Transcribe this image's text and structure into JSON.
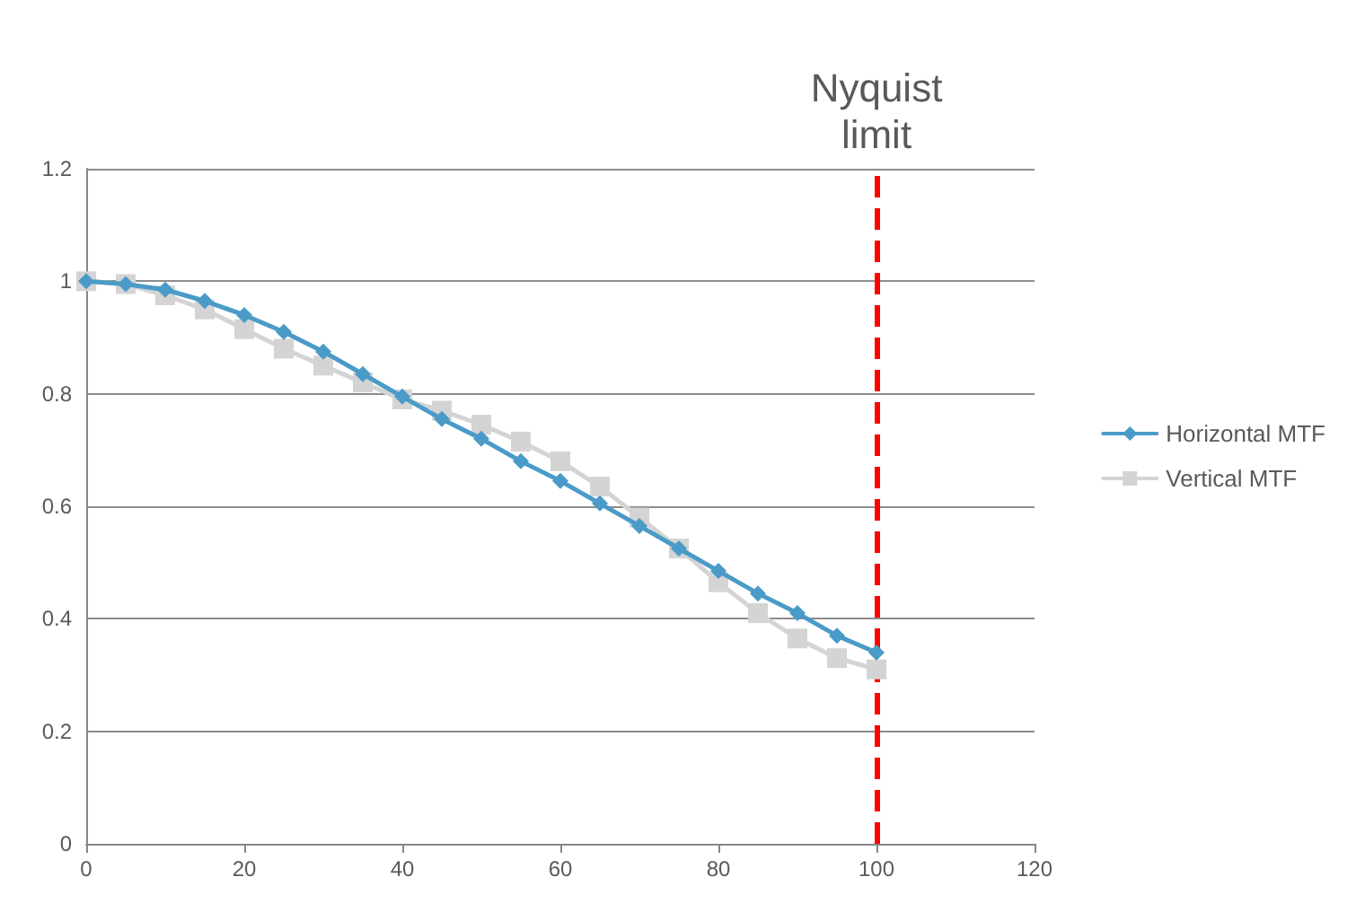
{
  "chart_data": {
    "type": "line",
    "x": [
      0,
      5,
      10,
      15,
      20,
      25,
      30,
      35,
      40,
      45,
      50,
      55,
      60,
      65,
      70,
      75,
      80,
      85,
      90,
      95,
      100
    ],
    "series": [
      {
        "name": "Horizontal MTF",
        "color": "#4a9bc7",
        "marker": "diamond",
        "values": [
          1,
          0.995,
          0.985,
          0.965,
          0.94,
          0.91,
          0.875,
          0.835,
          0.795,
          0.755,
          0.72,
          0.68,
          0.645,
          0.605,
          0.565,
          0.525,
          0.485,
          0.445,
          0.41,
          0.37,
          0.34
        ]
      },
      {
        "name": "Vertical MTF",
        "color": "#d4d4d4",
        "marker": "square",
        "values": [
          1,
          0.995,
          0.975,
          0.95,
          0.915,
          0.88,
          0.85,
          0.82,
          0.79,
          0.77,
          0.745,
          0.715,
          0.68,
          0.635,
          0.58,
          0.525,
          0.465,
          0.41,
          0.365,
          0.33,
          0.31
        ]
      }
    ],
    "xlim": [
      0,
      120
    ],
    "xticks": [
      0,
      20,
      40,
      60,
      80,
      100,
      120
    ],
    "ylim": [
      0,
      1.2
    ],
    "yticks": [
      0,
      0.2,
      0.4,
      0.6,
      0.8,
      1,
      1.2
    ],
    "grid": "y",
    "legend": "right",
    "ref_lines": [
      {
        "axis": "x",
        "value": 100,
        "label": "Nyquist\nlimit",
        "color": "#ff0000",
        "line_style": "dashed"
      }
    ]
  }
}
